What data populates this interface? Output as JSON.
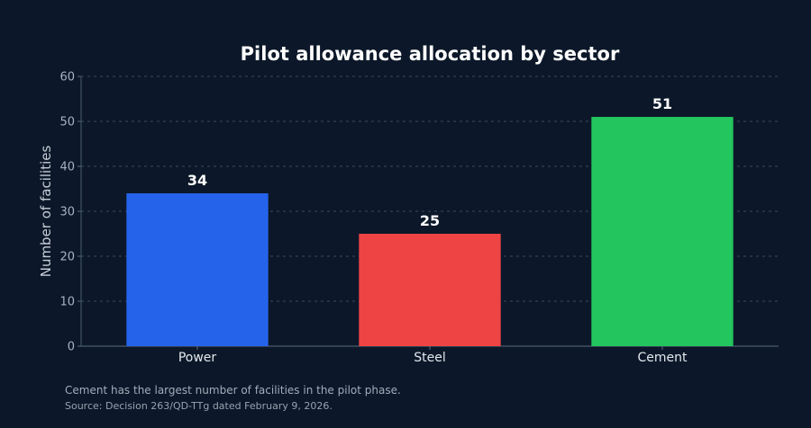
{
  "chart_data": {
    "type": "bar",
    "title": "Pilot allowance allocation by sector",
    "xlabel": "",
    "ylabel": "Number of facilities",
    "categories": [
      "Power",
      "Steel",
      "Cement"
    ],
    "values": [
      34,
      25,
      51
    ],
    "colors": [
      "#2563eb",
      "#ef4444",
      "#22c55e"
    ],
    "ylim": [
      0,
      60
    ],
    "yticks": [
      0,
      10,
      20,
      30,
      40,
      50,
      60
    ],
    "grid": true,
    "legend": "none"
  },
  "notes": {
    "caption": "Cement has the largest number of facilities in the pilot phase.",
    "source": "Source: Decision 263/QD-TTg dated February 9, 2026."
  }
}
